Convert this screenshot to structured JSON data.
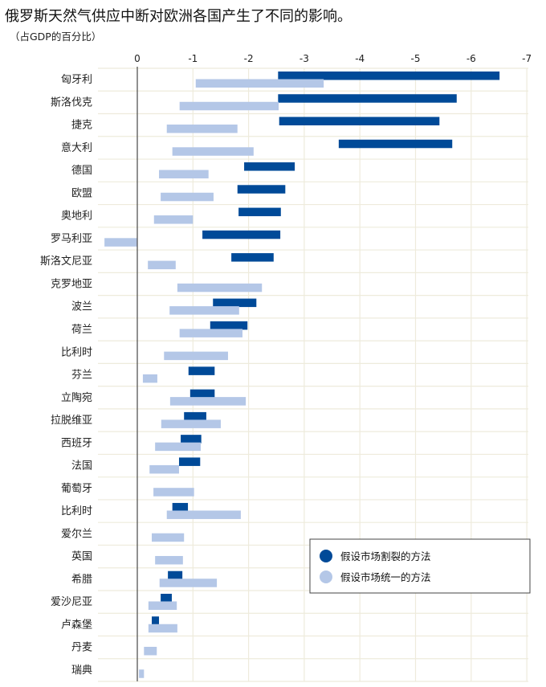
{
  "chart_data": {
    "type": "bar",
    "orientation": "horizontal",
    "bar_style": "floating range",
    "title": "俄罗斯天然气供应中断对欧洲各国产生了不同的影响。",
    "subtitle": "（占GDP的百分比）",
    "xlim": [
      0,
      -7
    ],
    "xticks": [
      "0",
      "-1",
      "-2",
      "-3",
      "-4",
      "-5",
      "-6",
      "-7"
    ],
    "axis_position": "top",
    "grid": true,
    "legend_position": "bottom-right",
    "categories": [
      "匈牙利",
      "斯洛伐克",
      "捷克",
      "意大利",
      "德国",
      "欧盟",
      "奥地利",
      "罗马利亚",
      "斯洛文尼亚",
      "克罗地亚",
      "波兰",
      "荷兰",
      "比利时",
      "芬兰",
      "立陶宛",
      "拉脱维亚",
      "西班牙",
      "法国",
      "葡萄牙",
      "比利时",
      "爱尔兰",
      "英国",
      "希腊",
      "爱沙尼亚",
      "卢森堡",
      "丹麦",
      "瑞典"
    ],
    "series": [
      {
        "name": "假设市场割裂的方法",
        "color": "#004a98",
        "ranges": [
          [
            -2.53,
            -6.51
          ],
          [
            -2.53,
            -5.74
          ],
          [
            -2.55,
            -5.43
          ],
          [
            -3.62,
            -5.66
          ],
          [
            -1.92,
            -2.83
          ],
          [
            -1.8,
            -2.66
          ],
          [
            -1.82,
            -2.58
          ],
          [
            -1.17,
            -2.57
          ],
          [
            -1.69,
            -2.45
          ],
          null,
          [
            -1.36,
            -2.14
          ],
          [
            -1.31,
            -1.98
          ],
          null,
          [
            -0.92,
            -1.39
          ],
          [
            -0.95,
            -1.39
          ],
          [
            -0.84,
            -1.24
          ],
          [
            -0.78,
            -1.15
          ],
          [
            -0.75,
            -1.13
          ],
          null,
          [
            -0.63,
            -0.91
          ],
          null,
          null,
          [
            -0.55,
            -0.81
          ],
          [
            -0.42,
            -0.62
          ],
          [
            -0.26,
            -0.39
          ],
          null,
          null
        ]
      },
      {
        "name": "假设市场统一的方法",
        "color": "#b4c7e7",
        "ranges": [
          [
            -1.05,
            -3.35
          ],
          [
            -0.76,
            -2.54
          ],
          [
            -0.53,
            -1.8
          ],
          [
            -0.63,
            -2.09
          ],
          [
            -0.39,
            -1.28
          ],
          [
            -0.42,
            -1.37
          ],
          [
            -0.3,
            -1.0
          ],
          [
            0.59,
            0
          ],
          [
            -0.19,
            -0.69
          ],
          [
            -0.72,
            -2.24
          ],
          [
            -0.58,
            -1.83
          ],
          [
            -0.76,
            -1.89
          ],
          [
            -0.48,
            -1.63
          ],
          [
            -0.1,
            -0.36
          ],
          [
            -0.59,
            -1.95
          ],
          [
            -0.43,
            -1.5
          ],
          [
            -0.32,
            -1.14
          ],
          [
            -0.22,
            -0.75
          ],
          [
            -0.29,
            -1.02
          ],
          [
            -0.53,
            -1.86
          ],
          [
            -0.26,
            -0.84
          ],
          [
            -0.32,
            -0.82
          ],
          [
            -0.4,
            -1.43
          ],
          [
            -0.2,
            -0.71
          ],
          [
            -0.2,
            -0.72
          ],
          [
            -0.12,
            -0.35
          ],
          [
            -0.03,
            -0.12
          ]
        ]
      }
    ]
  }
}
